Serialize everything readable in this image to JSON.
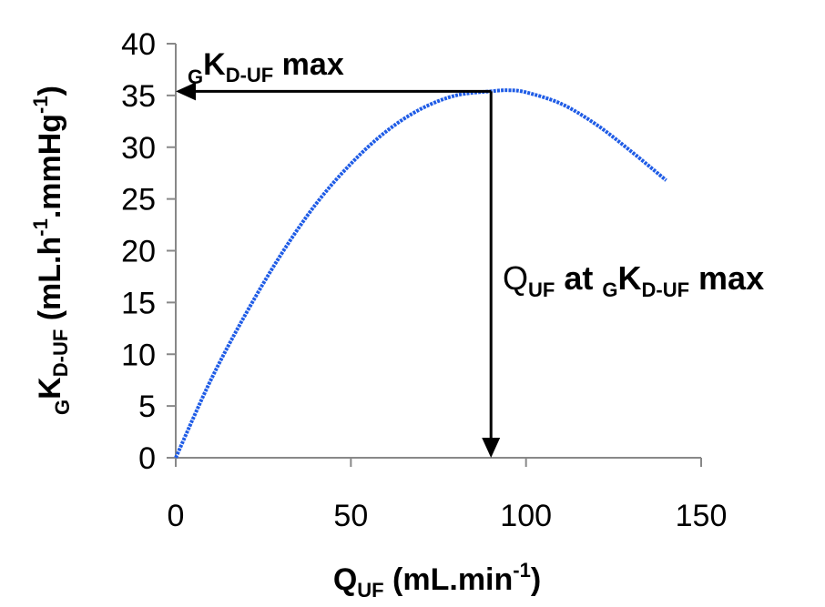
{
  "chart_data": {
    "type": "line",
    "xlim": [
      0,
      150
    ],
    "ylim": [
      0,
      40
    ],
    "x_ticks": [
      "0",
      "50",
      "100",
      "150"
    ],
    "y_ticks": [
      "0",
      "5",
      "10",
      "15",
      "20",
      "25",
      "30",
      "35",
      "40"
    ],
    "grid": false,
    "legend": "none",
    "series_color": "#1f5ce6",
    "curve": {
      "x": [
        0,
        10,
        20,
        30,
        40,
        50,
        60,
        70,
        80,
        90,
        95,
        100,
        110,
        120,
        130,
        140
      ],
      "y": [
        0,
        7.5,
        13.9,
        19.6,
        24.5,
        28.4,
        31.5,
        33.7,
        35.0,
        35.4,
        35.5,
        35.3,
        34.2,
        32.2,
        29.6,
        26.8
      ]
    },
    "arrow_horizontal": {
      "x_from": 90,
      "x_to": 0,
      "y": 35.4
    },
    "arrow_vertical": {
      "x": 90,
      "y_from": 35.4,
      "y_to": 0
    },
    "xlabel": {
      "main": "Q",
      "sub": "UF",
      "rest": " (mL.min",
      "sup": "-1",
      "end": ")"
    },
    "ylabel": {
      "pre_sub": "G",
      "main": "K",
      "sub": "D-UF",
      "rest": "  (mL.h",
      "sup1": "-1",
      "mid": ".mmHg",
      "sup2": "-1",
      "end": ")"
    },
    "annotation_top": {
      "pre_sub": "G",
      "main": "K",
      "sub": "D-UF",
      "rest": " max"
    },
    "annotation_right": {
      "main": "Q",
      "sub1": "UF",
      "mid": " at ",
      "sub2": "G",
      "k": "K",
      "sub3": "D-UF",
      "rest": " max"
    }
  }
}
